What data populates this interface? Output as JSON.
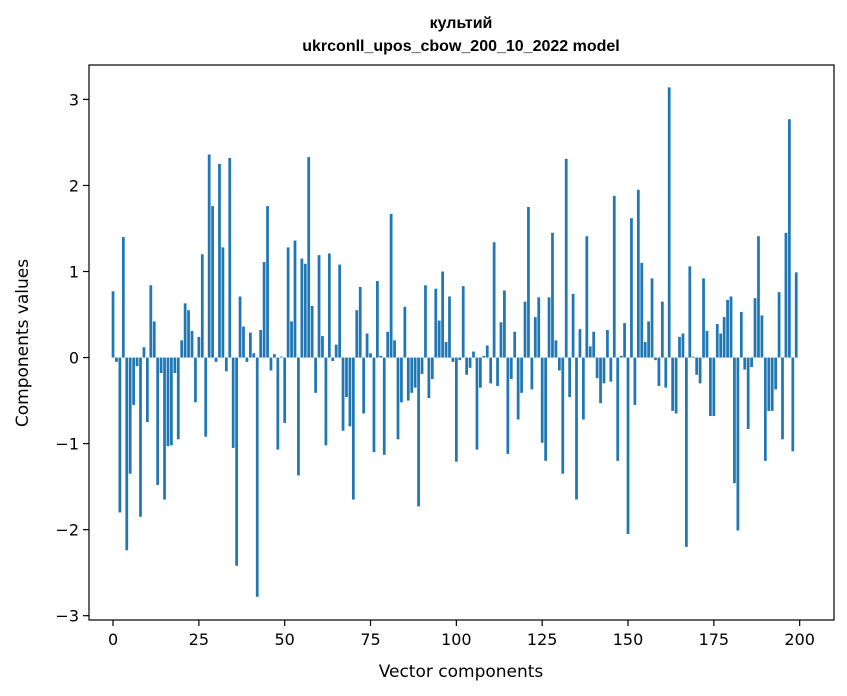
{
  "chart_data": {
    "type": "bar",
    "title_line1": "культий",
    "title_line2": "ukrconll_upos_cbow_200_10_2022 model",
    "xlabel": "Vector components",
    "ylabel": "Components values",
    "xlim": [
      -7,
      210
    ],
    "ylim": [
      -3.05,
      3.4
    ],
    "xticks": [
      0,
      25,
      50,
      75,
      100,
      125,
      150,
      175,
      200
    ],
    "yticks": [
      -3,
      -2,
      -1,
      0,
      1,
      2,
      3
    ],
    "ytick_labels": [
      "−3",
      "−2",
      "−1",
      "0",
      "1",
      "2",
      "3"
    ],
    "bar_color": "#1f77b4",
    "values": [
      0.77,
      -0.05,
      -1.8,
      1.4,
      -2.24,
      -1.35,
      -0.55,
      -0.1,
      -1.85,
      0.12,
      -0.75,
      0.84,
      0.42,
      -1.48,
      -0.18,
      -1.65,
      -1.03,
      -1.02,
      -0.18,
      -0.95,
      0.2,
      0.63,
      0.55,
      0.31,
      -0.52,
      0.24,
      1.2,
      -0.92,
      2.36,
      1.76,
      -0.05,
      2.25,
      1.28,
      -0.16,
      2.32,
      -1.05,
      -2.42,
      0.71,
      0.36,
      -0.05,
      0.29,
      0.05,
      -2.78,
      0.32,
      1.11,
      1.76,
      -0.15,
      0.04,
      -1.07,
      0.01,
      -0.76,
      1.28,
      0.42,
      1.36,
      -1.37,
      1.15,
      1.09,
      2.33,
      0.6,
      -0.41,
      1.19,
      0.25,
      -1.02,
      1.21,
      -0.04,
      0.15,
      1.08,
      -0.85,
      -0.46,
      -0.8,
      -1.65,
      0.55,
      0.82,
      -0.65,
      0.28,
      0.05,
      -1.1,
      0.89,
      0.02,
      -1.13,
      0.3,
      1.67,
      0.2,
      -0.95,
      -0.52,
      0.59,
      -0.5,
      -0.41,
      -0.35,
      -1.73,
      -0.19,
      0.84,
      -0.47,
      -0.25,
      0.8,
      0.43,
      1.0,
      0.18,
      0.71,
      -0.05,
      -1.21,
      -0.03,
      0.83,
      -0.2,
      -0.12,
      0.07,
      -1.07,
      -0.35,
      0.02,
      0.14,
      -0.3,
      1.34,
      -0.33,
      0.41,
      0.78,
      -1.12,
      -0.25,
      0.3,
      -0.72,
      -0.41,
      0.65,
      1.75,
      -0.37,
      0.47,
      0.7,
      -0.99,
      -1.2,
      0.7,
      1.45,
      0.2,
      -0.15,
      -1.35,
      2.31,
      -0.46,
      0.74,
      -1.65,
      0.33,
      -0.72,
      1.41,
      0.13,
      0.3,
      -0.24,
      -0.53,
      -0.3,
      0.32,
      -0.28,
      1.88,
      -1.2,
      0.02,
      0.4,
      -2.05,
      1.62,
      -0.55,
      1.95,
      1.1,
      0.18,
      0.42,
      0.92,
      -0.03,
      -0.33,
      0.65,
      -0.35,
      3.14,
      -0.62,
      -0.65,
      0.24,
      0.28,
      -2.2,
      1.06,
      0.01,
      -0.2,
      -0.3,
      0.92,
      0.31,
      -0.68,
      -0.68,
      0.39,
      0.28,
      0.47,
      0.67,
      0.71,
      -1.46,
      -2.01,
      0.53,
      -0.14,
      -0.83,
      -0.11,
      0.69,
      1.41,
      0.49,
      -1.2,
      -0.62,
      -0.62,
      -0.37,
      0.76,
      -0.95,
      1.45,
      2.77,
      -1.09,
      0.99
    ]
  }
}
